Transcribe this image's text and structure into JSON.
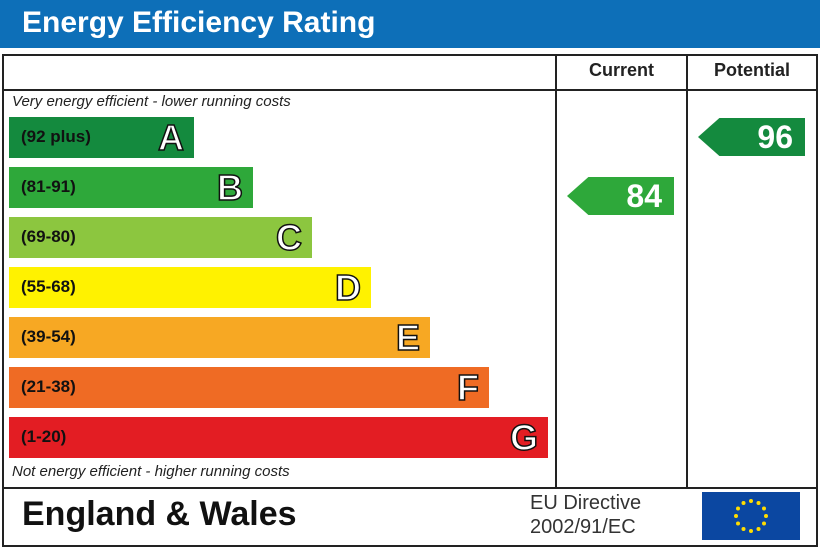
{
  "title": "Energy Efficiency Rating",
  "columns": {
    "current": "Current",
    "potential": "Potential"
  },
  "top_note": "Very energy efficient - lower running costs",
  "bottom_note": "Not energy efficient - higher running costs",
  "footer": {
    "region": "England & Wales",
    "directive_line1": "EU Directive",
    "directive_line2": "2002/91/EC",
    "flag_icon": "eu-flag"
  },
  "chart_data": {
    "type": "bar",
    "categories": [
      "A",
      "B",
      "C",
      "D",
      "E",
      "F",
      "G"
    ],
    "bands": [
      {
        "letter": "A",
        "range": "(92 plus)",
        "color": "#148a3e"
      },
      {
        "letter": "B",
        "range": "(81-91)",
        "color": "#2ea83a"
      },
      {
        "letter": "C",
        "range": "(69-80)",
        "color": "#8cc63f"
      },
      {
        "letter": "D",
        "range": "(55-68)",
        "color": "#fff200"
      },
      {
        "letter": "E",
        "range": "(39-54)",
        "color": "#f7a823"
      },
      {
        "letter": "F",
        "range": "(21-38)",
        "color": "#ef6b24"
      },
      {
        "letter": "G",
        "range": "(1-20)",
        "color": "#e31d23"
      }
    ],
    "current": {
      "value": 84,
      "band": "B",
      "color": "#2ea83a"
    },
    "potential": {
      "value": 96,
      "band": "A",
      "color": "#148a3e"
    }
  }
}
